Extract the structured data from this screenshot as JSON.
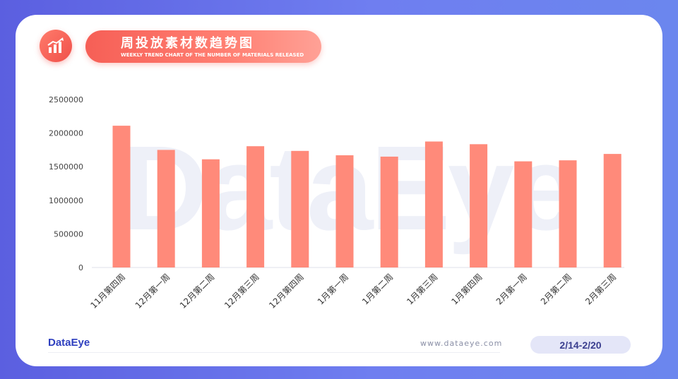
{
  "header": {
    "title": "周投放素材数趋势图",
    "subtitle": "WEEKLY TREND CHART OF THE NUMBER OF MATERIALS RELEASED",
    "icon": "bar-chart-trend-icon"
  },
  "watermark": "DataEye",
  "footer": {
    "brand": "DataEye",
    "website": "www.dataeye.com",
    "date_range": "2/14-2/20"
  },
  "colors": {
    "bar": "#ff8a7a",
    "accent": "#f65f56",
    "background": "#5b5fe0"
  },
  "chart_data": {
    "type": "bar",
    "categories": [
      "11月第四周",
      "12月第一周",
      "12月第二周",
      "12月第三周",
      "12月第四周",
      "1月第一周",
      "1月第二周",
      "1月第三周",
      "1月第四周",
      "2月第一周",
      "2月第二周",
      "2月第三周"
    ],
    "values": [
      2110000,
      1750000,
      1610000,
      1805000,
      1735000,
      1670000,
      1650000,
      1875000,
      1835000,
      1580000,
      1595000,
      1690000
    ],
    "ylim": [
      0,
      2500000
    ],
    "yticks": [
      0,
      500000,
      1000000,
      1500000,
      2000000,
      2500000
    ],
    "grid": false,
    "legend": "none"
  }
}
